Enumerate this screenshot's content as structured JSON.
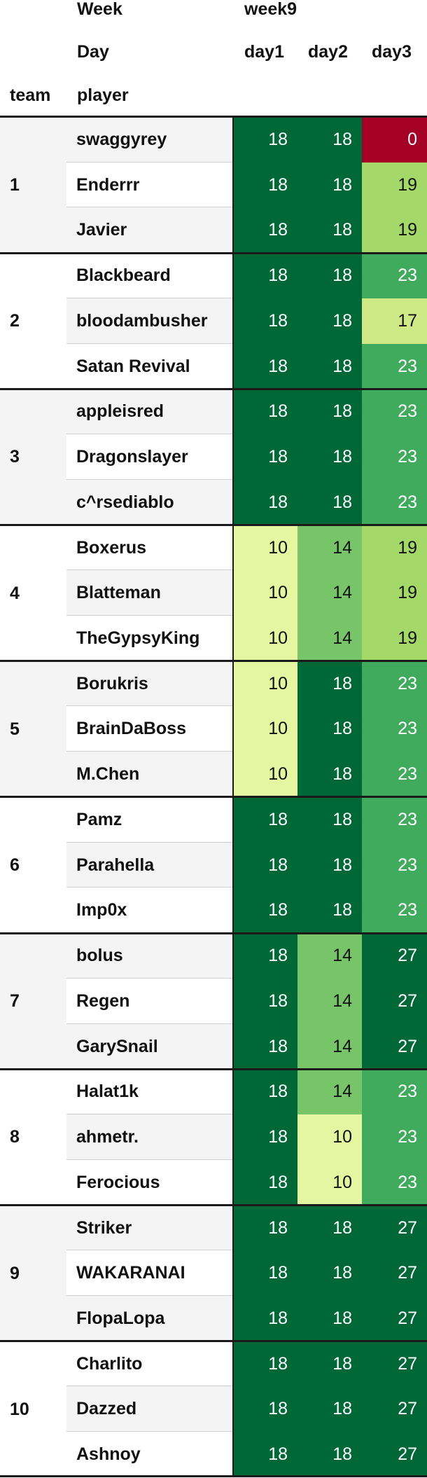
{
  "header": {
    "week_label": "Week",
    "week_value": "week9",
    "day_label": "Day",
    "days": [
      "day1",
      "day2",
      "day3"
    ],
    "team_label": "team",
    "player_label": "player"
  },
  "teams": [
    {
      "team": "1",
      "players": [
        {
          "name": "swaggyrey",
          "scores": [
            18,
            18,
            0
          ]
        },
        {
          "name": "Enderrr",
          "scores": [
            18,
            18,
            19
          ]
        },
        {
          "name": "Javier",
          "scores": [
            18,
            18,
            19
          ]
        }
      ]
    },
    {
      "team": "2",
      "players": [
        {
          "name": "Blackbeard",
          "scores": [
            18,
            18,
            23
          ]
        },
        {
          "name": "bloodambusher",
          "scores": [
            18,
            18,
            17
          ]
        },
        {
          "name": "Satan Revival",
          "scores": [
            18,
            18,
            23
          ]
        }
      ]
    },
    {
      "team": "3",
      "players": [
        {
          "name": "appleisred",
          "scores": [
            18,
            18,
            23
          ]
        },
        {
          "name": "Dragonslayer",
          "scores": [
            18,
            18,
            23
          ]
        },
        {
          "name": "c^rsediablo",
          "scores": [
            18,
            18,
            23
          ]
        }
      ]
    },
    {
      "team": "4",
      "players": [
        {
          "name": "Boxerus",
          "scores": [
            10,
            14,
            19
          ]
        },
        {
          "name": "Blatteman",
          "scores": [
            10,
            14,
            19
          ]
        },
        {
          "name": "TheGypsyKing",
          "scores": [
            10,
            14,
            19
          ]
        }
      ]
    },
    {
      "team": "5",
      "players": [
        {
          "name": "Borukris",
          "scores": [
            10,
            18,
            23
          ]
        },
        {
          "name": "BrainDaBoss",
          "scores": [
            10,
            18,
            23
          ]
        },
        {
          "name": "M.Chen",
          "scores": [
            10,
            18,
            23
          ]
        }
      ]
    },
    {
      "team": "6",
      "players": [
        {
          "name": "Pamz",
          "scores": [
            18,
            18,
            23
          ]
        },
        {
          "name": "Parahella",
          "scores": [
            18,
            18,
            23
          ]
        },
        {
          "name": "Imp0x",
          "scores": [
            18,
            18,
            23
          ]
        }
      ]
    },
    {
      "team": "7",
      "players": [
        {
          "name": "bolus",
          "scores": [
            18,
            14,
            27
          ]
        },
        {
          "name": "Regen",
          "scores": [
            18,
            14,
            27
          ]
        },
        {
          "name": "GarySnail",
          "scores": [
            18,
            14,
            27
          ]
        }
      ]
    },
    {
      "team": "8",
      "players": [
        {
          "name": "Halat1k",
          "scores": [
            18,
            14,
            23
          ]
        },
        {
          "name": "ahmetr.",
          "scores": [
            18,
            10,
            23
          ]
        },
        {
          "name": "Ferocious",
          "scores": [
            18,
            10,
            23
          ]
        }
      ]
    },
    {
      "team": "9",
      "players": [
        {
          "name": "Striker",
          "scores": [
            18,
            18,
            27
          ]
        },
        {
          "name": "WAKARANAI",
          "scores": [
            18,
            18,
            27
          ]
        },
        {
          "name": "FlopaLopa",
          "scores": [
            18,
            18,
            27
          ]
        }
      ]
    },
    {
      "team": "10",
      "players": [
        {
          "name": "Charlito",
          "scores": [
            18,
            18,
            27
          ]
        },
        {
          "name": "Dazzed",
          "scores": [
            18,
            18,
            27
          ]
        },
        {
          "name": "Ashnoy",
          "scores": [
            18,
            18,
            27
          ]
        }
      ]
    }
  ],
  "score_colors": {
    "0": {
      "bg": "#a50026",
      "fg": "#ffffff"
    },
    "10": {
      "bg": "#e6f5a1",
      "fg": "#111111"
    },
    "14": {
      "bg": "#78c468",
      "fg": "#111111"
    },
    "17": {
      "bg": "#cdea86",
      "fg": "#111111"
    },
    "18": {
      "bg": "#006837",
      "fg": "#ffffff"
    },
    "19": {
      "bg": "#a4d869",
      "fg": "#111111"
    },
    "23": {
      "bg": "#41ab5d",
      "fg": "#ffffff"
    },
    "27": {
      "bg": "#006837",
      "fg": "#ffffff"
    }
  },
  "row_stripe_colors": [
    "#f4f4f4",
    "#ffffff"
  ]
}
